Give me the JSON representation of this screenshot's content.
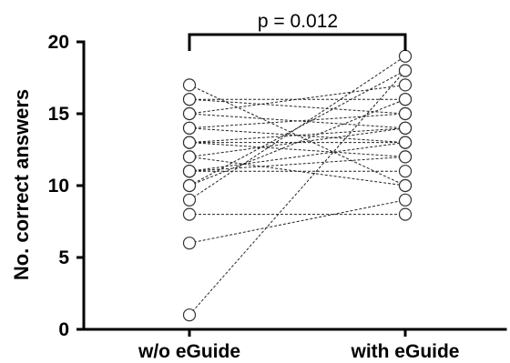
{
  "chart_data": {
    "type": "scatter",
    "subtype": "paired before-after",
    "categories": [
      "w/o eGuide",
      "with eGuide"
    ],
    "ylabel": "No. correct answers",
    "ylim": [
      0,
      20
    ],
    "yticks": [
      0,
      5,
      10,
      15,
      20
    ],
    "grid": false,
    "annotation": "p = 0.012",
    "pairs": [
      [
        17,
        10
      ],
      [
        16,
        15
      ],
      [
        16,
        16
      ],
      [
        15,
        17
      ],
      [
        15,
        14
      ],
      [
        14,
        13
      ],
      [
        14,
        15
      ],
      [
        13,
        13
      ],
      [
        13,
        12
      ],
      [
        13,
        14
      ],
      [
        12,
        14
      ],
      [
        12,
        10
      ],
      [
        11,
        12
      ],
      [
        11,
        11
      ],
      [
        11,
        13
      ],
      [
        10,
        18
      ],
      [
        10,
        16
      ],
      [
        9,
        19
      ],
      [
        8,
        8
      ],
      [
        6,
        9
      ],
      [
        1,
        18
      ]
    ],
    "colors": {
      "line": "#222222",
      "marker_edge": "#333333",
      "marker_fill": "#ffffff"
    }
  }
}
